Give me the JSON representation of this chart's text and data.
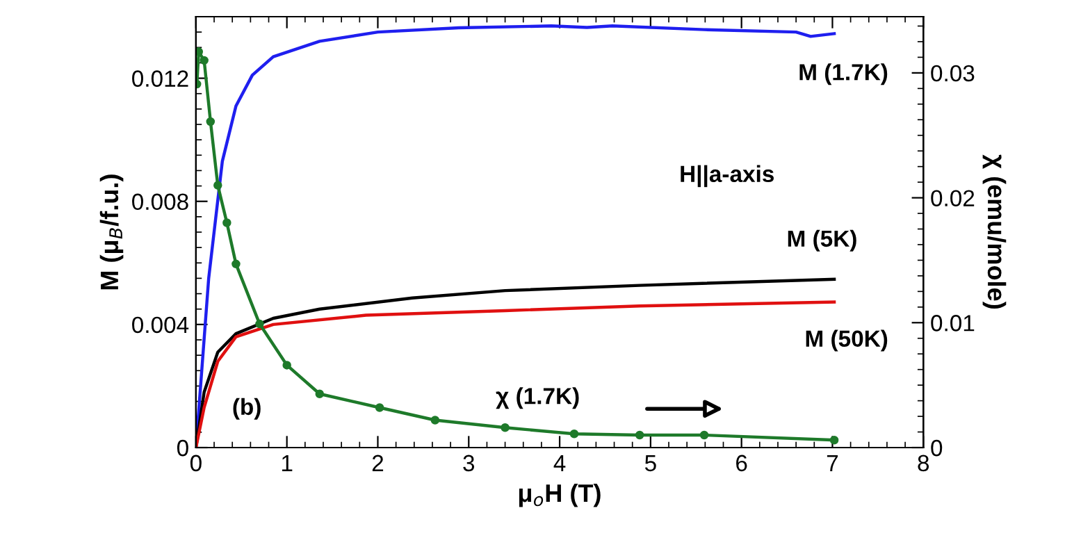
{
  "chart_data": {
    "type": "line",
    "xlabel": "μ$_{o}$H (T)",
    "ylabel": "M (μ$_{B}$/f.u.)",
    "y2label": "χ (emu/mole)",
    "xlim": [
      0,
      8
    ],
    "xticks": [
      0,
      1,
      2,
      3,
      4,
      5,
      6,
      7,
      8
    ],
    "ylim": [
      0,
      0.014
    ],
    "yticks": [
      0,
      0.004,
      0.008,
      0.012
    ],
    "y2lim": [
      0,
      0.0345
    ],
    "y2ticks": [
      0,
      0.01,
      0.02,
      0.03
    ],
    "annotations": [
      "H||a-axis",
      "(b)"
    ],
    "legend": false,
    "grid": false,
    "line_style": "solid",
    "series": [
      {
        "name": "M (1.7K)",
        "color": "#1f1fef",
        "x": [
          0,
          0.14,
          0.29,
          0.44,
          0.62,
          0.85,
          1.36,
          2.0,
          2.89,
          3.91,
          4.3,
          4.58,
          5.59,
          6.6,
          6.76,
          7.02
        ],
        "values": [
          0,
          0.0055,
          0.0093,
          0.0111,
          0.0121,
          0.0127,
          0.0132,
          0.0135,
          0.01364,
          0.0137,
          0.01365,
          0.0137,
          0.01358,
          0.0135,
          0.01336,
          0.01345
        ]
      },
      {
        "name": "M (5K)",
        "color": "#000000",
        "x": [
          0,
          0.09,
          0.24,
          0.44,
          0.85,
          1.36,
          2.38,
          3.4,
          4.88,
          7.02
        ],
        "values": [
          0,
          0.0018,
          0.0031,
          0.0037,
          0.0042,
          0.0045,
          0.00486,
          0.0051,
          0.00527,
          0.00547
        ]
      },
      {
        "name": "M (50K)",
        "color": "#e01010",
        "x": [
          0,
          0.09,
          0.24,
          0.44,
          0.85,
          1.87,
          3.4,
          4.88,
          7.02
        ],
        "values": [
          0,
          0.0013,
          0.0028,
          0.0036,
          0.004,
          0.0043,
          0.00445,
          0.0046,
          0.00473
        ]
      },
      {
        "name": "χ (1.7K)",
        "color": "#1e7a2a",
        "axis": "y2",
        "marker": "circle",
        "x": [
          0.01,
          0.03,
          0.09,
          0.16,
          0.24,
          0.34,
          0.44,
          0.7,
          1.0,
          1.36,
          2.02,
          2.63,
          3.4,
          4.16,
          4.88,
          5.59,
          7.02
        ],
        "values": [
          0.0291,
          0.0317,
          0.031,
          0.0261,
          0.021,
          0.018,
          0.0147,
          0.0099,
          0.0066,
          0.0043,
          0.0032,
          0.0022,
          0.0016,
          0.0011,
          0.001,
          0.001,
          0.0006
        ]
      }
    ]
  }
}
